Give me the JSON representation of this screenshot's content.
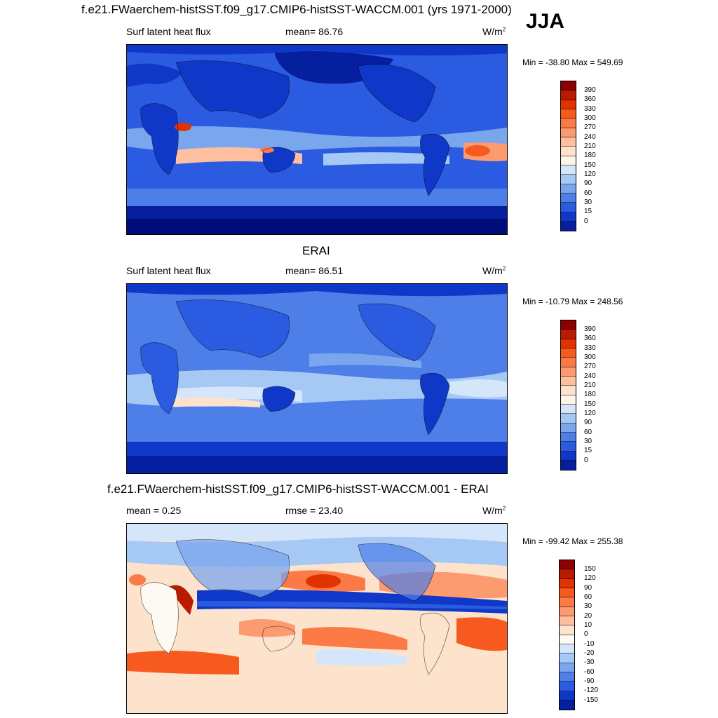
{
  "header": {
    "title": "f.e21.FWaerchem-histSST.f09_g17.CMIP6-histSST-WACCM.001 (yrs 1971-2000)",
    "season": "JJA"
  },
  "panels": [
    {
      "id": "model",
      "left_label": "Surf latent heat flux",
      "center_label": "mean=  86.76",
      "units": "W/m",
      "units_sup": "2",
      "minmax": "Min = -38.80 Max = 549.69",
      "colorbar_labels": [
        "390",
        "360",
        "330",
        "300",
        "270",
        "240",
        "210",
        "180",
        "150",
        "120",
        "90",
        "60",
        "30",
        "15",
        "0"
      ],
      "colorbar_colors": [
        "#8b0000",
        "#b81b00",
        "#e03300",
        "#f75a1f",
        "#fb7a45",
        "#fc9a70",
        "#fdbfa0",
        "#fde3cc",
        "#fdf5e8",
        "#d6e6fa",
        "#a6c8f5",
        "#7aa6ee",
        "#4e7fe8",
        "#2a5be0",
        "#1038c8",
        "#061f9e",
        "#000c78"
      ]
    },
    {
      "id": "obs",
      "panel_title": "ERAI",
      "left_label": "Surf latent heat flux",
      "center_label": "mean=  86.51",
      "units": "W/m",
      "units_sup": "2",
      "minmax": "Min = -10.79 Max = 248.56",
      "colorbar_labels": [
        "390",
        "360",
        "330",
        "300",
        "270",
        "240",
        "210",
        "180",
        "150",
        "120",
        "90",
        "60",
        "30",
        "15",
        "0"
      ],
      "colorbar_colors": [
        "#8b0000",
        "#b81b00",
        "#e03300",
        "#f75a1f",
        "#fb7a45",
        "#fc9a70",
        "#fdbfa0",
        "#fde3cc",
        "#fdf5e8",
        "#d6e6fa",
        "#a6c8f5",
        "#7aa6ee",
        "#4e7fe8",
        "#2a5be0",
        "#1038c8",
        "#061f9e",
        "#000c78"
      ]
    },
    {
      "id": "diff",
      "panel_title": "f.e21.FWaerchem-histSST.f09_g17.CMIP6-histSST-WACCM.001 - ERAI",
      "left_label": "mean =   0.25",
      "center_label": "rmse =  23.40",
      "units": "W/m",
      "units_sup": "2",
      "minmax": "Min = -99.42 Max = 255.38",
      "colorbar_labels": [
        "150",
        "120",
        "90",
        "60",
        "30",
        "20",
        "10",
        "0",
        "-10",
        "-20",
        "-30",
        "-60",
        "-90",
        "-120",
        "-150"
      ],
      "colorbar_colors": [
        "#8b0000",
        "#b81b00",
        "#e03300",
        "#f75a1f",
        "#fb7a45",
        "#fc9a70",
        "#fdbfa0",
        "#fde3cc",
        "#fdfaf3",
        "#d6e6fa",
        "#a6c8f5",
        "#7aa6ee",
        "#4e7fe8",
        "#2a5be0",
        "#1038c8",
        "#061f9e",
        "#000c78"
      ]
    }
  ]
}
